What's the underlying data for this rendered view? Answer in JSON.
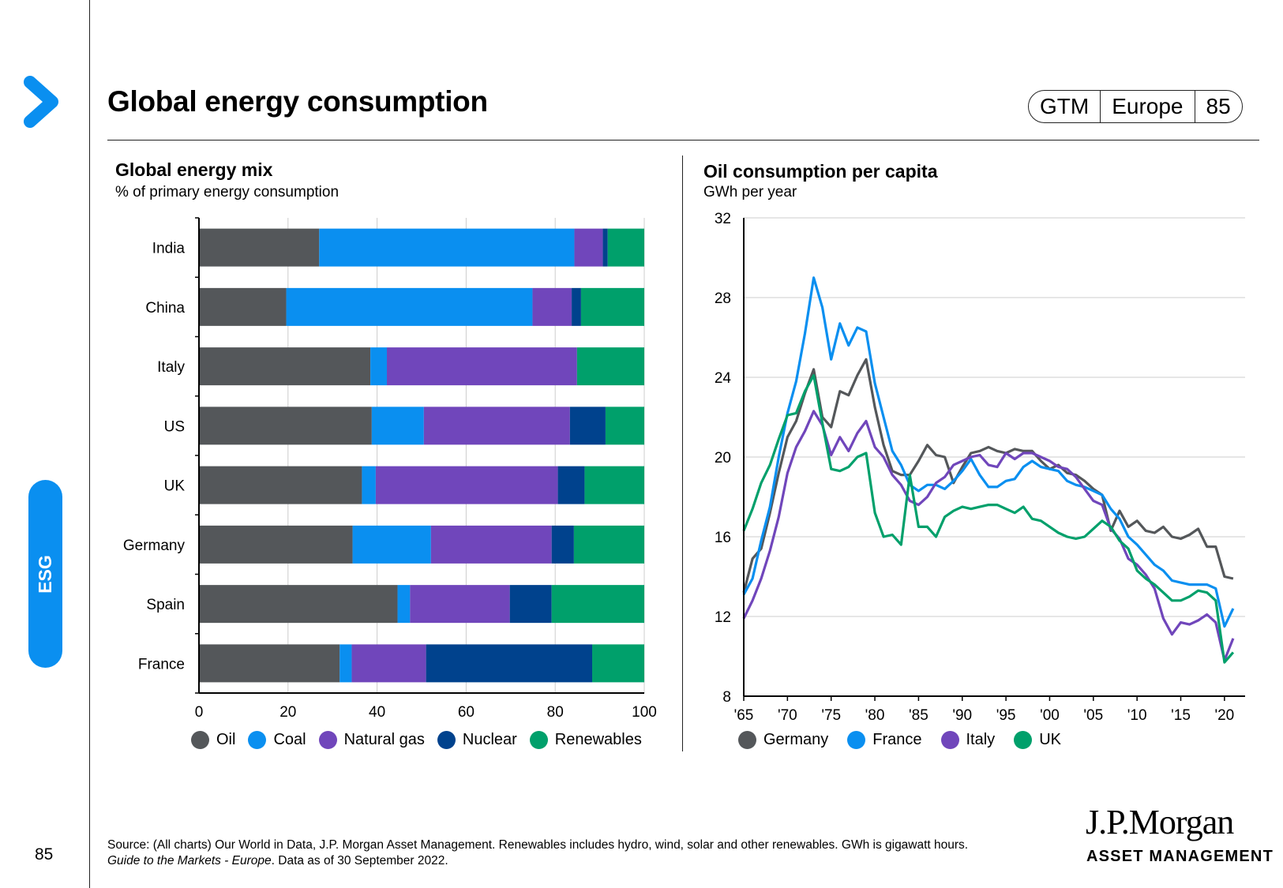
{
  "header": {
    "title": "Global energy consumption",
    "badge": [
      "GTM",
      "Europe",
      "85"
    ]
  },
  "sidebar": {
    "section": "ESG",
    "page_number": "85"
  },
  "colors": {
    "accent": "#0a8ff0",
    "oil": "#54575a",
    "coal": "#0a8ff0",
    "natural_gas": "#7046bb",
    "nuclear": "#00428d",
    "renewables": "#00a06b",
    "germany": "#54575a",
    "france": "#0a8ff0",
    "italy": "#7046bb",
    "uk": "#00a06b"
  },
  "chart_data": [
    {
      "type": "bar",
      "orientation": "horizontal",
      "stacked": true,
      "title": "Global energy mix",
      "subtitle": "% of primary energy consumption",
      "categories": [
        "India",
        "China",
        "Italy",
        "US",
        "UK",
        "Germany",
        "Spain",
        "France"
      ],
      "xlim": [
        0,
        100
      ],
      "xticks": [
        "0",
        "20",
        "40",
        "60",
        "80",
        "100"
      ],
      "grid": true,
      "legend_position": "bottom",
      "series": [
        {
          "name": "Oil",
          "values": [
            27,
            19.6,
            38.5,
            38.8,
            36.6,
            34.5,
            44.6,
            31.6
          ]
        },
        {
          "name": "Coal",
          "values": [
            57.3,
            55.3,
            3.7,
            11.7,
            3.1,
            17.6,
            2.8,
            2.7
          ]
        },
        {
          "name": "Natural gas",
          "values": [
            6.4,
            8.8,
            42.7,
            32.8,
            40.9,
            27.1,
            22.4,
            16.7
          ]
        },
        {
          "name": "Nuclear",
          "values": [
            1.1,
            2.1,
            0,
            8,
            6,
            5,
            9.4,
            37.3
          ]
        },
        {
          "name": "Renewables",
          "values": [
            8.2,
            14.2,
            15.1,
            8.7,
            13.4,
            15.8,
            20.8,
            11.7
          ]
        }
      ]
    },
    {
      "type": "line",
      "title": "Oil consumption per capita",
      "subtitle": "GWh per year",
      "x": [
        1965,
        1966,
        1967,
        1968,
        1969,
        1970,
        1971,
        1972,
        1973,
        1974,
        1975,
        1976,
        1977,
        1978,
        1979,
        1980,
        1981,
        1982,
        1983,
        1984,
        1985,
        1986,
        1987,
        1988,
        1989,
        1990,
        1991,
        1992,
        1993,
        1994,
        1995,
        1996,
        1997,
        1998,
        1999,
        2000,
        2001,
        2002,
        2003,
        2004,
        2005,
        2006,
        2007,
        2008,
        2009,
        2010,
        2011,
        2012,
        2013,
        2014,
        2015,
        2016,
        2017,
        2018,
        2019,
        2020,
        2021
      ],
      "ylim": [
        8,
        32
      ],
      "yticks": [
        "8",
        "12",
        "16",
        "20",
        "24",
        "28",
        "32"
      ],
      "xticks": [
        "'65",
        "'70",
        "'75",
        "'80",
        "'85",
        "'90",
        "'95",
        "'00",
        "'05",
        "'10",
        "'15",
        "'20"
      ],
      "xtick_years": [
        1965,
        1970,
        1975,
        1980,
        1985,
        1990,
        1995,
        2000,
        2005,
        2010,
        2015,
        2020
      ],
      "grid": true,
      "legend_position": "bottom",
      "series": [
        {
          "name": "Germany",
          "values": [
            13.2,
            14.9,
            15.4,
            17.2,
            19.2,
            21.0,
            21.8,
            23.2,
            24.4,
            22.0,
            21.5,
            23.3,
            23.1,
            24.1,
            24.9,
            22.5,
            20.6,
            19.3,
            19.1,
            19.1,
            19.8,
            20.6,
            20.1,
            20.0,
            18.7,
            19.5,
            20.2,
            20.3,
            20.5,
            20.3,
            20.2,
            20.4,
            20.3,
            20.3,
            19.8,
            19.4,
            19.6,
            19.2,
            19.1,
            18.8,
            18.4,
            18.1,
            16.3,
            17.3,
            16.5,
            16.8,
            16.3,
            16.2,
            16.5,
            16.0,
            15.9,
            16.1,
            16.4,
            15.5,
            15.5,
            14.0,
            13.9
          ]
        },
        {
          "name": "France",
          "values": [
            13.1,
            13.9,
            15.8,
            17.5,
            20.0,
            22.2,
            23.8,
            26.2,
            29.0,
            27.5,
            24.9,
            26.7,
            25.6,
            26.5,
            26.3,
            23.7,
            22.0,
            20.3,
            19.6,
            18.6,
            18.3,
            18.6,
            18.6,
            18.4,
            18.8,
            19.3,
            19.9,
            19.1,
            18.5,
            18.5,
            18.8,
            18.9,
            19.5,
            19.8,
            19.5,
            19.4,
            19.3,
            18.8,
            18.6,
            18.5,
            18.3,
            18.1,
            17.4,
            16.9,
            16.0,
            15.6,
            15.1,
            14.6,
            14.3,
            13.8,
            13.7,
            13.6,
            13.6,
            13.6,
            13.4,
            11.5,
            12.4
          ]
        },
        {
          "name": "Italy",
          "values": [
            11.9,
            12.8,
            13.9,
            15.3,
            17.0,
            19.2,
            20.5,
            21.3,
            22.3,
            21.6,
            20.1,
            21.0,
            20.3,
            21.2,
            21.8,
            20.5,
            20.0,
            19.1,
            18.6,
            17.8,
            17.6,
            18.0,
            18.7,
            19.0,
            19.6,
            19.8,
            20.0,
            20.1,
            19.6,
            19.5,
            20.2,
            19.9,
            20.2,
            20.2,
            20.0,
            19.8,
            19.5,
            19.4,
            19.0,
            18.4,
            17.8,
            17.6,
            16.4,
            15.9,
            14.9,
            14.6,
            14.1,
            13.4,
            11.9,
            11.1,
            11.7,
            11.6,
            11.8,
            12.1,
            11.7,
            9.8,
            10.9
          ]
        },
        {
          "name": "UK",
          "values": [
            16.3,
            17.4,
            18.7,
            19.6,
            20.9,
            22.1,
            22.2,
            23.3,
            24.1,
            21.7,
            19.4,
            19.3,
            19.5,
            20.0,
            20.2,
            17.2,
            16.0,
            16.1,
            15.6,
            19.1,
            16.5,
            16.5,
            16.0,
            17.0,
            17.3,
            17.5,
            17.4,
            17.5,
            17.6,
            17.6,
            17.4,
            17.2,
            17.5,
            16.9,
            16.8,
            16.5,
            16.2,
            16.0,
            15.9,
            16.0,
            16.4,
            16.8,
            16.5,
            15.8,
            15.4,
            14.3,
            13.9,
            13.6,
            13.2,
            12.8,
            12.8,
            13.0,
            13.3,
            13.2,
            12.8,
            9.7,
            10.2
          ]
        }
      ]
    }
  ],
  "footnote": {
    "line1": "Source: (All charts) Our World in Data, J.P. Morgan Asset Management. Renewables includes hydro, wind, solar and other renewables. GWh is gigawatt hours.",
    "line2_italic": "Guide to the Markets - Europe",
    "line2_rest": ". Data as of 30 September 2022."
  },
  "logo": {
    "line1": "J.P.Morgan",
    "line2": "ASSET MANAGEMENT"
  }
}
